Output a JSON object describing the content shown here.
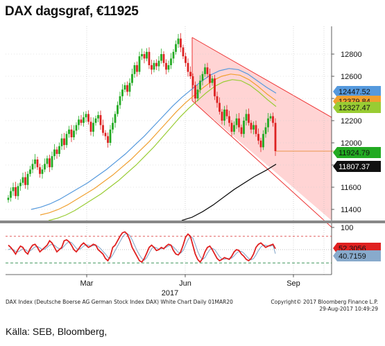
{
  "title": "DAX dagsgraf, €11925",
  "footer": {
    "left": "DAX Index (Deutsche Boerse AG German Stock Index DAX) White Chart  Daily 01MAR20",
    "copyright": "Copyright© 2017 Bloomberg Finance L.P.",
    "timestamp": "29-Aug-2017 10:49:29"
  },
  "source": "Källa: SEB, Bloomberg,",
  "colors": {
    "up_candle": "#22aa22",
    "down_candle": "#dd2222",
    "ma_blue": "#5599dd",
    "ma_orange": "#f0a030",
    "ma_green": "#99cc33",
    "ma_black": "#111111",
    "channel_fill": "#ffcccc",
    "channel_line": "#ee3333",
    "stoch_fast": "#e02020",
    "stoch_slow": "#88aacc"
  },
  "chart_data": [
    {
      "type": "candlestick",
      "title": "DAX dagsgraf, €11925",
      "x_ticks": [
        "Mar",
        "Jun",
        "Sep"
      ],
      "x_year_label": "2017",
      "y_ticks": [
        11400,
        11600,
        11800,
        12000,
        12200,
        12400,
        12600,
        12800
      ],
      "ylim": [
        11300,
        13050
      ],
      "price_labels": [
        {
          "value": 12447.52,
          "label": "12447.52",
          "color": "#5599dd"
        },
        {
          "value": 12379.84,
          "label": "12379.84",
          "color": "#f0a030"
        },
        {
          "value": 12327.47,
          "label": "12327.47",
          "color": "#99cc33"
        },
        {
          "value": 11924.79,
          "label": "11924.79",
          "color": "#22aa22"
        },
        {
          "value": 11807.37,
          "label": "11807.37",
          "color": "#111111"
        }
      ],
      "candles_close": [
        11505,
        11565,
        11600,
        11520,
        11610,
        11640,
        11690,
        11620,
        11720,
        11760,
        11810,
        11850,
        11780,
        11720,
        11760,
        11810,
        11860,
        11780,
        11880,
        11940,
        11900,
        11970,
        12040,
        11980,
        12080,
        12120,
        12050,
        12110,
        12160,
        12210,
        12180,
        12230,
        12260,
        12190,
        12100,
        12180,
        12220,
        12250,
        12160,
        12090,
        12060,
        12000,
        12120,
        12180,
        12260,
        12340,
        12420,
        12480,
        12520,
        12460,
        12540,
        12620,
        12700,
        12640,
        12780,
        12800,
        12760,
        12820,
        12700,
        12660,
        12720,
        12690,
        12740,
        12800,
        12720,
        12660,
        12700,
        12760,
        12820,
        12890,
        12940,
        12860,
        12780,
        12720,
        12640,
        12600,
        12520,
        12400,
        12480,
        12560,
        12620,
        12680,
        12620,
        12540,
        12580,
        12420,
        12360,
        12280,
        12200,
        12300,
        12240,
        12180,
        12100,
        12160,
        12220,
        12140,
        12080,
        12200,
        12260,
        12180,
        12120,
        12160,
        12080,
        12020,
        11960,
        12080,
        12140,
        12220,
        12240,
        12180,
        11925
      ],
      "ma_blue": [
        11400,
        11420,
        11450,
        11490,
        11540,
        11590,
        11640,
        11700,
        11760,
        11830,
        11900,
        11980,
        12060,
        12150,
        12240,
        12330,
        12410,
        12480,
        12550,
        12610,
        12650,
        12670,
        12660,
        12620,
        12560,
        12500,
        12447.52
      ],
      "ma_orange": [
        11350,
        11370,
        11400,
        11440,
        11490,
        11540,
        11590,
        11650,
        11710,
        11780,
        11850,
        11930,
        12010,
        12100,
        12190,
        12280,
        12360,
        12430,
        12500,
        12560,
        12600,
        12620,
        12610,
        12570,
        12510,
        12440,
        12379.84
      ],
      "ma_green": [
        11300,
        11320,
        11350,
        11390,
        11440,
        11490,
        11540,
        11600,
        11660,
        11730,
        11800,
        11880,
        11960,
        12050,
        12140,
        12230,
        12310,
        12380,
        12450,
        12510,
        12550,
        12570,
        12560,
        12520,
        12460,
        12390,
        12327.47
      ],
      "ma_black": [
        11300,
        11330,
        11380,
        11440,
        11510,
        11580,
        11640,
        11700,
        11750,
        11807.37
      ],
      "channel": {
        "upper_start": 12950,
        "upper_end": 12230,
        "lower_start": 12380,
        "lower_end": 11240
      }
    },
    {
      "type": "line",
      "title": "",
      "y_ticks": [
        100
      ],
      "last_labels": [
        {
          "value": 52.3056,
          "label": "52.3056",
          "color": "#e02020"
        },
        {
          "value": 40.7159,
          "label": "40.7159",
          "color": "#88aacc"
        }
      ],
      "levels": {
        "overbought": 80,
        "middle": 50,
        "oversold": 20
      },
      "fast": [
        60,
        55,
        48,
        40,
        50,
        58,
        55,
        45,
        40,
        52,
        60,
        62,
        55,
        45,
        50,
        55,
        60,
        70,
        65,
        55,
        45,
        50,
        55,
        70,
        72,
        68,
        60,
        50,
        45,
        52,
        60,
        65,
        60,
        55,
        58,
        62,
        60,
        50,
        45,
        40,
        30,
        25,
        35,
        55,
        60,
        70,
        80,
        88,
        90,
        85,
        72,
        55,
        45,
        35,
        25,
        22,
        30,
        42,
        55,
        60,
        55,
        48,
        50,
        55,
        52,
        58,
        62,
        60,
        48,
        40,
        38,
        45,
        60,
        78,
        85,
        80,
        60,
        40,
        28,
        22,
        30,
        45,
        55,
        58,
        50,
        40,
        30,
        25,
        28,
        32,
        30,
        28,
        35,
        45,
        50,
        48,
        40,
        35,
        28,
        25,
        30,
        40,
        55,
        62,
        65,
        60,
        55,
        58,
        60,
        62,
        52
      ],
      "slow": [
        50,
        52,
        50,
        46,
        45,
        48,
        52,
        50,
        46,
        47,
        52,
        56,
        57,
        54,
        50,
        51,
        55,
        60,
        62,
        60,
        55,
        52,
        52,
        58,
        64,
        68,
        66,
        60,
        53,
        50,
        53,
        58,
        61,
        60,
        58,
        59,
        60,
        57,
        52,
        46,
        40,
        33,
        30,
        38,
        48,
        58,
        68,
        78,
        85,
        86,
        82,
        72,
        60,
        48,
        38,
        30,
        26,
        32,
        42,
        52,
        56,
        54,
        51,
        52,
        53,
        55,
        58,
        60,
        56,
        50,
        44,
        42,
        48,
        60,
        72,
        80,
        76,
        62,
        46,
        34,
        28,
        32,
        42,
        50,
        53,
        50,
        42,
        34,
        29,
        28,
        30,
        30,
        31,
        36,
        42,
        46,
        46,
        42,
        36,
        30,
        27,
        30,
        38,
        48,
        56,
        60,
        60,
        58,
        58,
        60,
        40.7159
      ]
    }
  ]
}
